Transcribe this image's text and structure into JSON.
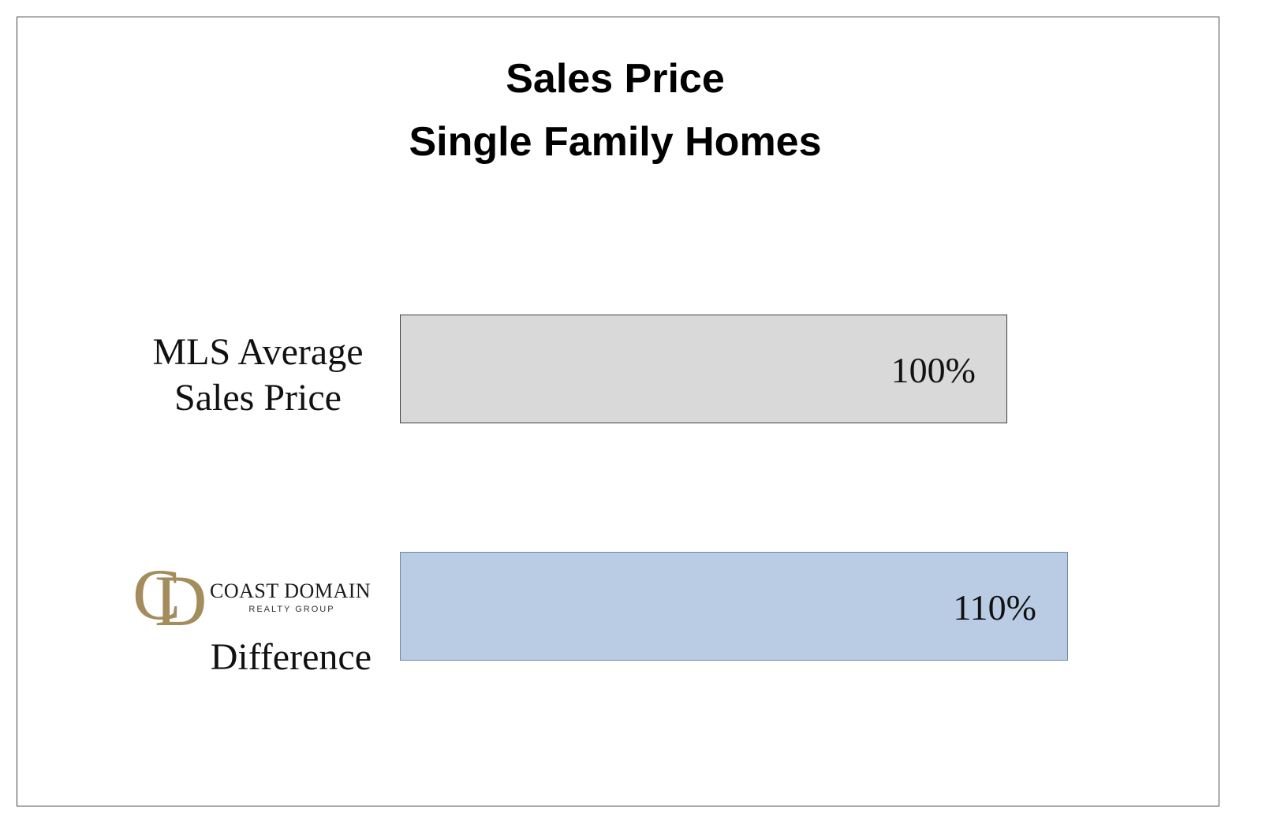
{
  "chart_data": {
    "type": "bar",
    "orientation": "horizontal",
    "title": "Sales Price",
    "subtitle": "Single Family Homes",
    "categories": [
      "MLS Average Sales Price",
      "Difference"
    ],
    "values": [
      100,
      110
    ],
    "value_labels": [
      "100%",
      "110%"
    ],
    "colors": [
      "#d9d9d9",
      "#b9cce4"
    ],
    "border_colors": [
      "#404040",
      "#6f86a8"
    ]
  },
  "logo": {
    "monogram": [
      "C",
      "D"
    ],
    "name": "COAST DOMAIN",
    "tagline": "REALTY GROUP"
  }
}
